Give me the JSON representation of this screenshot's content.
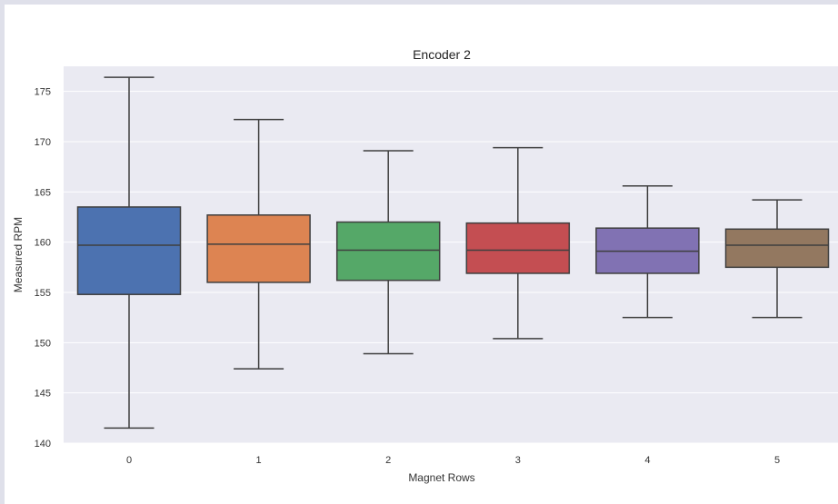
{
  "chart_data": {
    "type": "boxplot",
    "title": "Encoder 2",
    "xlabel": "Magnet Rows",
    "ylabel": "Measured RPM",
    "ylim": [
      140,
      177.5
    ],
    "yticks": [
      140,
      145,
      150,
      155,
      160,
      165,
      170,
      175
    ],
    "grid": true,
    "categories": [
      "0",
      "1",
      "2",
      "3",
      "4",
      "5"
    ],
    "boxes": [
      {
        "category": "0",
        "whisker_low": 141.5,
        "q1": 154.8,
        "median": 159.7,
        "q3": 163.5,
        "whisker_high": 176.4,
        "color": "#4c72b0"
      },
      {
        "category": "1",
        "whisker_low": 147.4,
        "q1": 156.0,
        "median": 159.8,
        "q3": 162.7,
        "whisker_high": 172.2,
        "color": "#dd8452"
      },
      {
        "category": "2",
        "whisker_low": 148.9,
        "q1": 156.2,
        "median": 159.2,
        "q3": 162.0,
        "whisker_high": 169.1,
        "color": "#55a868"
      },
      {
        "category": "3",
        "whisker_low": 150.4,
        "q1": 156.9,
        "median": 159.2,
        "q3": 161.9,
        "whisker_high": 169.4,
        "color": "#c44e52"
      },
      {
        "category": "4",
        "whisker_low": 152.5,
        "q1": 156.9,
        "median": 159.1,
        "q3": 161.4,
        "whisker_high": 165.6,
        "color": "#8172b3"
      },
      {
        "category": "5",
        "whisker_low": 152.5,
        "q1": 157.5,
        "median": 159.7,
        "q3": 161.3,
        "whisker_high": 164.2,
        "color": "#937860"
      }
    ],
    "colors": {
      "plot_background": "#eaeaf2",
      "grid": "#ffffff",
      "outline": "#3f3f3f"
    }
  }
}
